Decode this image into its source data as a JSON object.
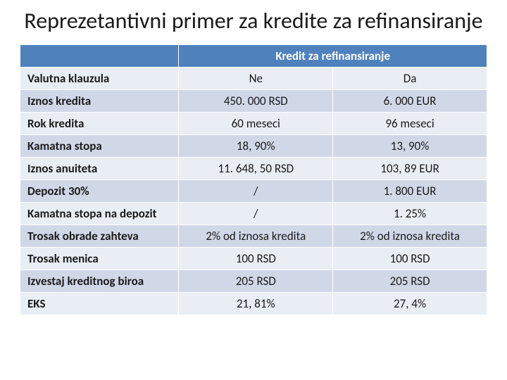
{
  "title": "Reprezetantivni primer za kredite za refinansiranje",
  "table": {
    "header_span": "Kredit za refinansiranje",
    "rows": [
      {
        "label": "Valutna klauzula",
        "col1": "Ne",
        "col2": "Da"
      },
      {
        "label": "Iznos kredita",
        "col1": "450. 000 RSD",
        "col2": "6. 000 EUR"
      },
      {
        "label": "Rok kredita",
        "col1": "60 meseci",
        "col2": "96 meseci"
      },
      {
        "label": "Kamatna stopa",
        "col1": "18, 90%",
        "col2": "13, 90%"
      },
      {
        "label": "Iznos anuiteta",
        "col1": "11. 648, 50 RSD",
        "col2": "103, 89 EUR"
      },
      {
        "label": "Depozit 30%",
        "col1": "/",
        "col2": "1. 800 EUR"
      },
      {
        "label": "Kamatna stopa na depozit",
        "col1": "/",
        "col2": "1. 25%"
      },
      {
        "label": "Trosak obrade zahteva",
        "col1": "2% od iznosa kredita",
        "col2": "2% od iznosa kredita"
      },
      {
        "label": "Trosak menica",
        "col1": "100 RSD",
        "col2": "100 RSD"
      },
      {
        "label": "Izvestaj kreditnog biroa",
        "col1": "205 RSD",
        "col2": "205 RSD"
      },
      {
        "label": "EKS",
        "col1": "21, 81%",
        "col2": "27, 4%"
      }
    ],
    "colors": {
      "header_bg": "#4f81bd",
      "header_fg": "#ffffff",
      "row_bg_a": "#e9edf4",
      "row_bg_b": "#d0d8e8",
      "cell_border": "#ffffff",
      "text": "#1a1a1a"
    },
    "font_size_pt": 13,
    "title_font_size_pt": 24
  }
}
